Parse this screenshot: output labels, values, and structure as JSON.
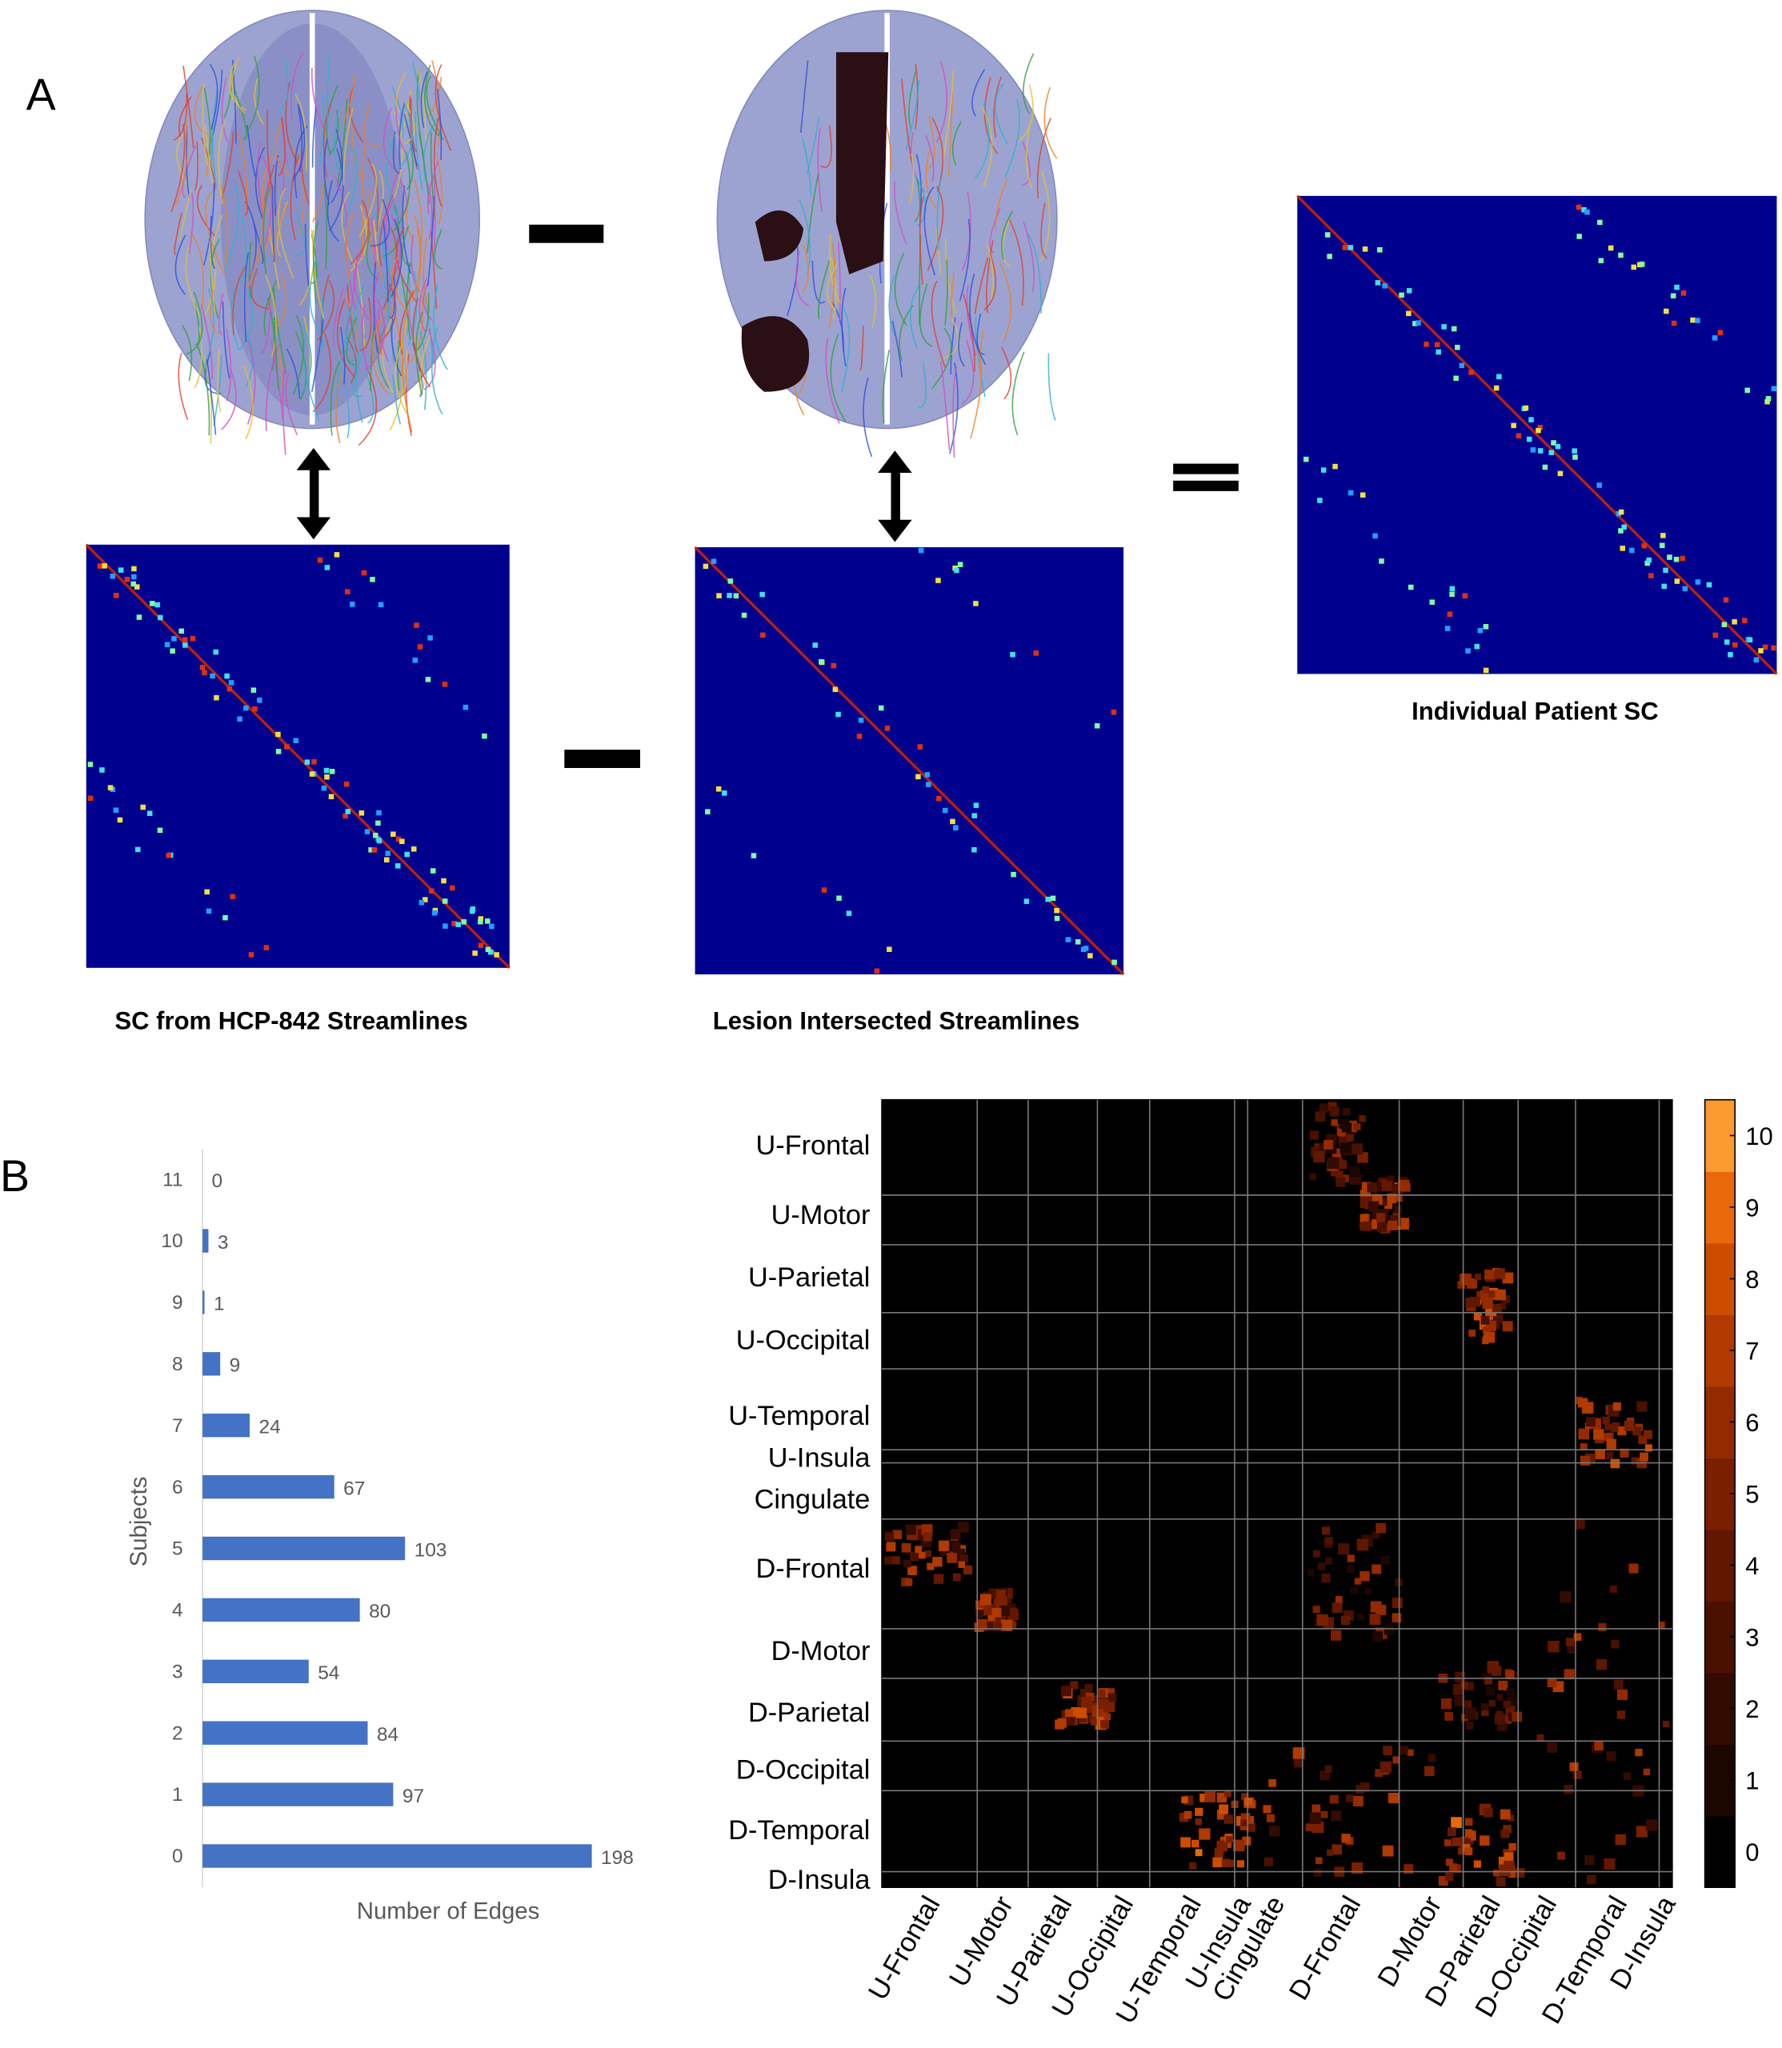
{
  "panel_a": {
    "label": "A",
    "captions": [
      "SC from HCP-842 Streamlines",
      "Lesion Intersected Streamlines",
      "Individual Patient SC"
    ]
  },
  "panel_b": {
    "label": "B"
  },
  "chart_data": [
    {
      "type": "bar",
      "orientation": "horizontal",
      "ylabel": "Subjects",
      "xlabel": "Number of Edges",
      "categories": [
        "0",
        "1",
        "2",
        "3",
        "4",
        "5",
        "6",
        "7",
        "8",
        "9",
        "10",
        "11"
      ],
      "values": [
        198,
        97,
        84,
        54,
        80,
        103,
        67,
        24,
        9,
        1,
        3,
        0
      ],
      "color": "#4472c4",
      "xlim": [
        0,
        200
      ]
    },
    {
      "type": "heatmap",
      "row_labels": [
        "U-Frontal",
        "U-Motor",
        "U-Parietal",
        "U-Occipital",
        "U-Temporal",
        "U-Insula",
        "Cingulate",
        "D-Frontal",
        "D-Motor",
        "D-Parietal",
        "D-Occipital",
        "D-Temporal",
        "D-Insula"
      ],
      "col_labels": [
        "U-Frontal",
        "U-Motor",
        "U-Parietal",
        "U-Occipital",
        "U-Temporal",
        "U-Insula",
        "Cingulate",
        "D-Frontal",
        "D-Motor",
        "D-Parietal",
        "D-Occipital",
        "D-Temporal",
        "D-Insula"
      ],
      "clim": [
        -0.5,
        10.5
      ],
      "colorbar_ticks": [
        0,
        1,
        2,
        3,
        4,
        5,
        6,
        7,
        8,
        9,
        10
      ],
      "colormap": [
        "#000000",
        "#1c0600",
        "#330b00",
        "#4a1000",
        "#611700",
        "#7a2000",
        "#942b00",
        "#b03a00",
        "#cc4d00",
        "#e8680a",
        "#fb9a2e"
      ]
    }
  ]
}
